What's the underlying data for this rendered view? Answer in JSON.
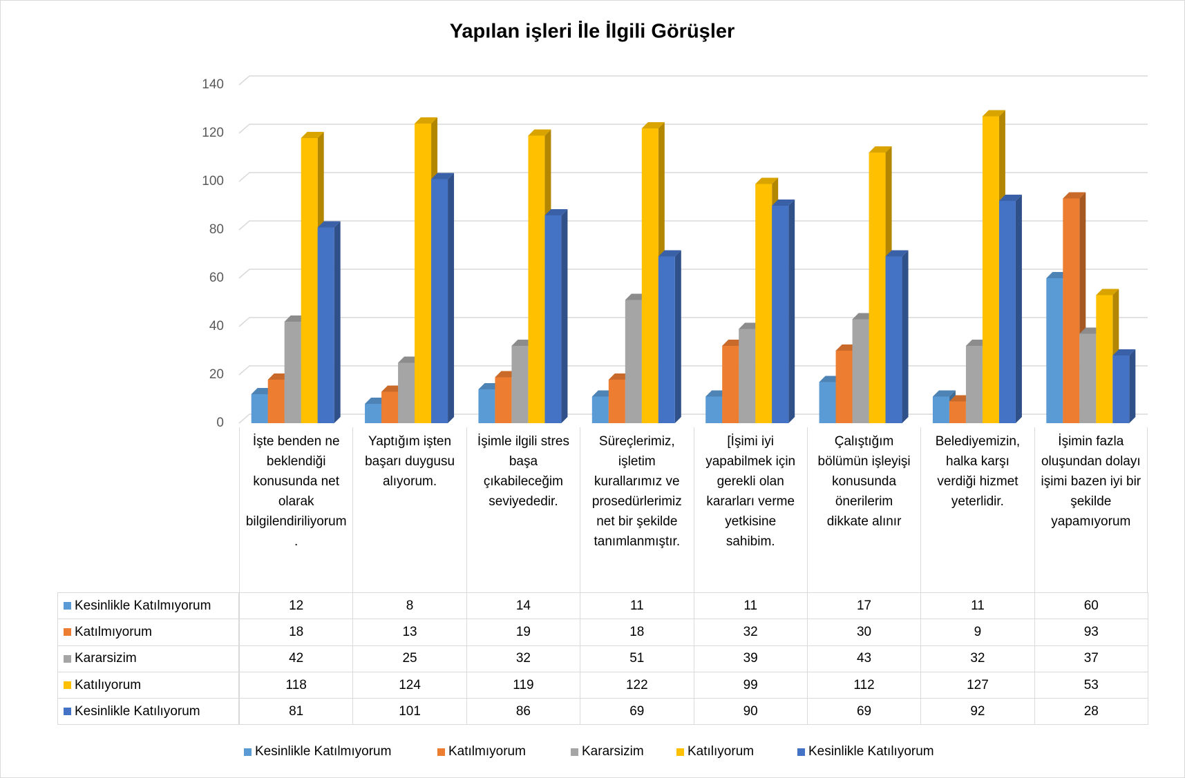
{
  "chart_data": {
    "type": "bar",
    "title": "Yapılan işleri İle İlgili Görüşler",
    "categories": [
      "İşte benden ne beklendiği konusunda net olarak bilgilendiriliyorum.",
      "Yaptığım işten başarı duygusu alıyorum.",
      "İşimle ilgili stres başa çıkabileceğim seviyededir.",
      "Süreçlerimiz, işletim kurallarımız ve prosedürlerimiz net bir şekilde tanımlanmıştır.",
      "[İşimi iyi yapabilmek için gerekli olan kararları verme yetkisine sahibim.",
      "Çalıştığım bölümün işleyişi konusunda önerilerim dikkate alınır",
      "Belediyemizin, halka karşı verdiği hizmet yeterlidir.",
      "İşimin fazla oluşundan dolayı işimi bazen iyi bir şekilde yapamıyorum"
    ],
    "series": [
      {
        "name": "Kesinlikle Katılmıyorum",
        "color": "#5b9bd5",
        "values": [
          12,
          8,
          14,
          11,
          11,
          17,
          11,
          60
        ]
      },
      {
        "name": "Katılmıyorum",
        "color": "#ed7d31",
        "values": [
          18,
          13,
          19,
          18,
          32,
          30,
          9,
          93
        ]
      },
      {
        "name": "Kararsizim",
        "color": "#a5a5a5",
        "values": [
          42,
          25,
          32,
          51,
          39,
          43,
          32,
          37
        ]
      },
      {
        "name": "Katılıyorum",
        "color": "#ffc000",
        "values": [
          118,
          124,
          119,
          122,
          99,
          112,
          127,
          53
        ]
      },
      {
        "name": "Kesinlikle Katılıyorum",
        "color": "#4472c4",
        "values": [
          81,
          101,
          86,
          69,
          90,
          69,
          92,
          28
        ]
      }
    ],
    "ylim": [
      0,
      140
    ],
    "yticks": [
      0,
      20,
      40,
      60,
      80,
      100,
      120,
      140
    ],
    "grid": true,
    "data_table": true,
    "legend": "bottom"
  }
}
